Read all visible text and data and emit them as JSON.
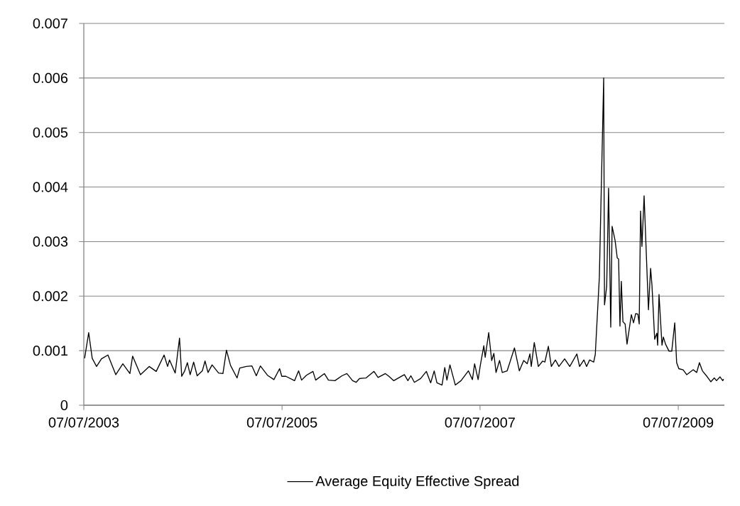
{
  "chart_data": {
    "type": "line",
    "x": [
      "2003-07-10",
      "2003-07-25",
      "2003-08-07",
      "2003-08-23",
      "2003-09-10",
      "2003-10-04",
      "2003-11-02",
      "2003-11-28",
      "2003-12-24",
      "2004-01-03",
      "2004-02-01",
      "2004-03-04",
      "2004-03-30",
      "2004-04-28",
      "2004-05-11",
      "2004-05-18",
      "2004-06-08",
      "2004-06-24",
      "2004-07-02",
      "2004-07-13",
      "2004-07-23",
      "2004-08-02",
      "2004-08-15",
      "2004-08-28",
      "2004-09-16",
      "2004-09-26",
      "2004-10-07",
      "2004-10-22",
      "2004-11-15",
      "2004-12-01",
      "2004-12-14",
      "2004-12-29",
      "2005-01-22",
      "2005-02-01",
      "2005-02-25",
      "2005-03-18",
      "2005-04-03",
      "2005-04-18",
      "2005-05-14",
      "2005-06-07",
      "2005-06-28",
      "2005-07-06",
      "2005-07-21",
      "2005-08-22",
      "2005-09-06",
      "2005-09-17",
      "2005-10-05",
      "2005-10-29",
      "2005-11-08",
      "2005-12-10",
      "2005-12-25",
      "2006-01-18",
      "2006-02-13",
      "2006-03-03",
      "2006-03-24",
      "2006-04-06",
      "2006-04-19",
      "2006-05-13",
      "2006-06-11",
      "2006-06-26",
      "2006-07-23",
      "2006-08-05",
      "2006-08-23",
      "2006-10-01",
      "2006-10-14",
      "2006-10-25",
      "2006-11-07",
      "2006-11-30",
      "2006-12-21",
      "2007-01-06",
      "2007-01-19",
      "2007-01-29",
      "2007-02-17",
      "2007-02-27",
      "2007-03-07",
      "2007-03-18",
      "2007-04-07",
      "2007-04-28",
      "2007-05-25",
      "2007-06-09",
      "2007-06-17",
      "2007-06-30",
      "2007-07-08",
      "2007-07-21",
      "2007-07-26",
      "2007-08-08",
      "2007-08-19",
      "2007-08-27",
      "2007-09-04",
      "2007-09-17",
      "2007-09-27",
      "2007-10-15",
      "2007-11-11",
      "2007-11-29",
      "2007-12-15",
      "2007-12-28",
      "2008-01-07",
      "2008-01-12",
      "2008-01-23",
      "2008-02-07",
      "2008-02-23",
      "2008-03-02",
      "2008-03-15",
      "2008-03-26",
      "2008-04-10",
      "2008-04-23",
      "2008-05-14",
      "2008-06-02",
      "2008-06-28",
      "2008-07-08",
      "2008-07-24",
      "2008-08-03",
      "2008-08-14",
      "2008-08-29",
      "2008-09-04",
      "2008-09-19",
      "2008-10-05",
      "2008-10-08",
      "2008-10-16",
      "2008-10-23",
      "2008-10-31",
      "2008-11-05",
      "2008-11-16",
      "2008-11-24",
      "2008-11-29",
      "2008-12-04",
      "2008-12-09",
      "2008-12-15",
      "2008-12-23",
      "2008-12-30",
      "2009-01-15",
      "2009-01-23",
      "2009-01-31",
      "2009-02-08",
      "2009-02-13",
      "2009-02-18",
      "2009-02-23",
      "2009-03-03",
      "2009-03-19",
      "2009-03-27",
      "2009-04-01",
      "2009-04-11",
      "2009-04-19",
      "2009-04-22",
      "2009-04-27",
      "2009-05-08",
      "2009-05-13",
      "2009-05-21",
      "2009-06-03",
      "2009-06-13",
      "2009-06-24",
      "2009-07-01",
      "2009-07-09",
      "2009-07-25",
      "2009-08-07",
      "2009-08-31",
      "2009-09-13",
      "2009-09-23",
      "2009-10-04",
      "2009-10-22",
      "2009-11-04",
      "2009-11-17",
      "2009-11-25",
      "2009-12-08",
      "2009-12-18",
      "2009-12-21"
    ],
    "series": [
      {
        "name": "Average Equity Effective Spread",
        "color": "#000000",
        "values": [
          0.00086,
          0.00133,
          0.00086,
          0.00071,
          0.00085,
          0.00092,
          0.00056,
          0.00076,
          0.00058,
          0.0009,
          0.00056,
          0.00071,
          0.00062,
          0.00092,
          0.00071,
          0.00083,
          0.00059,
          0.00123,
          0.00053,
          0.00063,
          0.00078,
          0.00056,
          0.00079,
          0.00054,
          0.00063,
          0.00081,
          0.0006,
          0.00074,
          0.00059,
          0.00058,
          0.00101,
          0.00073,
          0.0005,
          0.00068,
          0.00071,
          0.00072,
          0.00054,
          0.00072,
          0.00055,
          0.00047,
          0.00067,
          0.00053,
          0.00053,
          0.00045,
          0.00063,
          0.00046,
          0.00055,
          0.00062,
          0.00046,
          0.00058,
          0.00046,
          0.00045,
          0.00054,
          0.00058,
          0.00045,
          0.00042,
          0.00049,
          0.0005,
          0.00062,
          0.00051,
          0.00058,
          0.00053,
          0.00045,
          0.00056,
          0.00045,
          0.00054,
          0.00042,
          0.00049,
          0.00062,
          0.00041,
          0.00063,
          0.00041,
          0.00037,
          0.00069,
          0.00046,
          0.00074,
          0.00037,
          0.00045,
          0.00063,
          0.00047,
          0.00076,
          0.00047,
          0.00073,
          0.00109,
          0.00088,
          0.00133,
          0.00082,
          0.00095,
          0.0006,
          0.00082,
          0.0006,
          0.00063,
          0.00105,
          0.00063,
          0.00082,
          0.00076,
          0.00094,
          0.00071,
          0.00115,
          0.00071,
          0.00081,
          0.00079,
          0.00108,
          0.00071,
          0.00083,
          0.00071,
          0.00085,
          0.00071,
          0.00094,
          0.00071,
          0.00083,
          0.00071,
          0.00083,
          0.00079,
          0.00093,
          0.00235,
          0.006,
          0.00184,
          0.00218,
          0.00398,
          0.00143,
          0.00328,
          0.00302,
          0.0027,
          0.00268,
          0.00145,
          0.00227,
          0.00153,
          0.00149,
          0.00112,
          0.00166,
          0.00151,
          0.00168,
          0.00167,
          0.00149,
          0.00356,
          0.00291,
          0.00384,
          0.00175,
          0.00251,
          0.0022,
          0.00121,
          0.00132,
          0.0011,
          0.00203,
          0.0011,
          0.00125,
          0.00112,
          0.00099,
          0.00099,
          0.00151,
          0.00078,
          0.00067,
          0.00065,
          0.00056,
          0.00065,
          0.0006,
          0.00078,
          0.00063,
          0.00052,
          0.00043,
          0.0005,
          0.00045,
          0.00052,
          0.00045,
          0.00048
        ]
      }
    ],
    "xlim": [
      "2003-07-07",
      "2009-12-24"
    ],
    "xticks": [
      {
        "value": "2003-07-07",
        "label": "07/07/2003"
      },
      {
        "value": "2005-07-07",
        "label": "07/07/2005"
      },
      {
        "value": "2007-07-07",
        "label": "07/07/2007"
      },
      {
        "value": "2009-07-07",
        "label": "07/07/2009"
      }
    ],
    "ylim": [
      0,
      0.007
    ],
    "yticks": [
      0,
      0.001,
      0.002,
      0.003,
      0.004,
      0.005,
      0.006,
      0.007
    ],
    "grid": "y",
    "legend": "bottom"
  }
}
